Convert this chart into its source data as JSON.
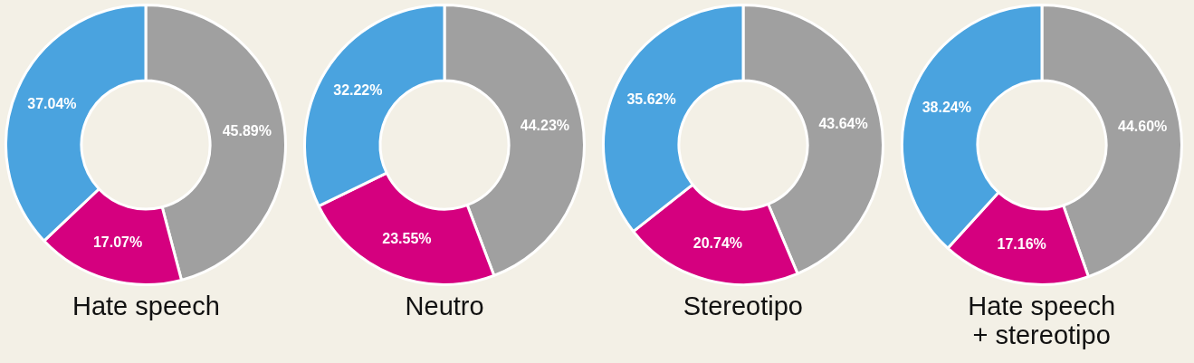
{
  "chart_data": [
    {
      "type": "donut",
      "title": "Hate speech",
      "categories": [
        null,
        null,
        null
      ],
      "values": [
        45.89,
        17.07,
        37.04
      ],
      "colors": [
        "#a0a0a0",
        "#d5007f",
        "#4aa3df"
      ],
      "value_labels": [
        "45.89%",
        "17.07%",
        "37.04%"
      ],
      "legend": false
    },
    {
      "type": "donut",
      "title": "Neutro",
      "categories": [
        null,
        null,
        null
      ],
      "values": [
        44.23,
        23.55,
        32.22
      ],
      "colors": [
        "#a0a0a0",
        "#d5007f",
        "#4aa3df"
      ],
      "value_labels": [
        "44.23%",
        "23.55%",
        "32.22%"
      ],
      "legend": false
    },
    {
      "type": "donut",
      "title": "Stereotipo",
      "categories": [
        null,
        null,
        null
      ],
      "values": [
        43.64,
        20.74,
        35.62
      ],
      "colors": [
        "#a0a0a0",
        "#d5007f",
        "#4aa3df"
      ],
      "value_labels": [
        "43.64%",
        "20.74%",
        "35.62%"
      ],
      "legend": false
    },
    {
      "type": "donut",
      "title": "Hate speech\n+ stereotipo",
      "categories": [
        null,
        null,
        null
      ],
      "values": [
        44.6,
        17.16,
        38.24
      ],
      "colors": [
        "#a0a0a0",
        "#d5007f",
        "#4aa3df"
      ],
      "value_labels": [
        "44.60%",
        "17.16%",
        "38.24%"
      ],
      "legend": false
    }
  ]
}
